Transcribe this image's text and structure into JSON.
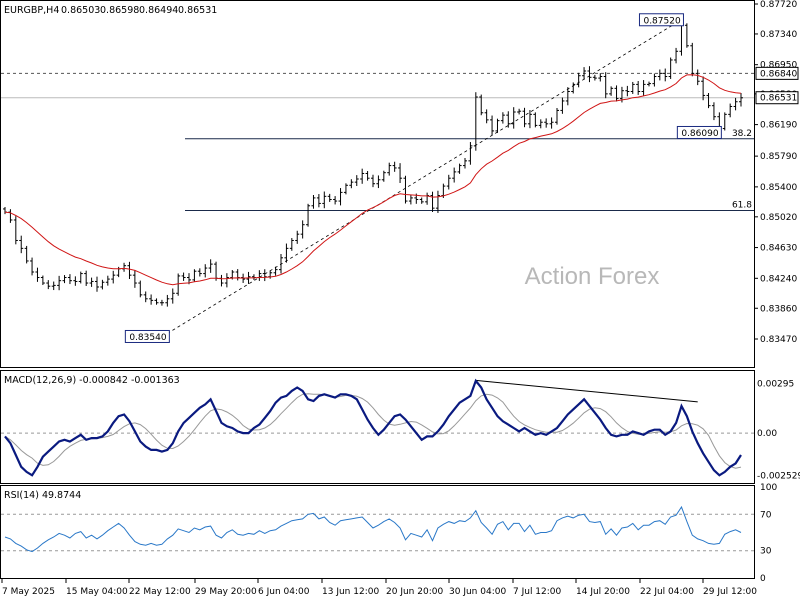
{
  "chart_data": [
    {
      "type": "line",
      "subtype": "candlestick",
      "title": "EURGBP,H4",
      "ohlc": {
        "open": "0.86503",
        "high": "0.86598",
        "low": "0.86494",
        "close": "0.86531"
      },
      "watermark": "Action Forex",
      "x_ticks": [
        "7 May 2025",
        "15 May 04:00",
        "22 May 12:00",
        "29 May 20:00",
        "6 Jun 04:00",
        "13 Jun 12:00",
        "20 Jun 20:00",
        "30 Jun 04:00",
        "7 Jul 12:00",
        "14 Jul 20:00",
        "22 Jul 04:00",
        "29 Jul 12:00"
      ],
      "y_ticks": [
        "0.87720",
        "0.87340",
        "0.86950",
        "0.86580",
        "0.86190",
        "0.85790",
        "0.85400",
        "0.85020",
        "0.84630",
        "0.84240",
        "0.83860",
        "0.83470"
      ],
      "ylim": [
        0.8347,
        0.8772
      ],
      "current_price": "0.86531",
      "resistance_line": "0.86840",
      "fib_labels": [
        {
          "label": "38.2",
          "value": 0.8601
        },
        {
          "label": "61.8",
          "value": 0.851
        }
      ],
      "price_labels": [
        {
          "text": "0.83540",
          "x_index": 30,
          "value": 0.8354
        },
        {
          "text": "0.87520",
          "x_index": 125,
          "value": 0.8752
        },
        {
          "text": "0.86090",
          "x_index": 132,
          "value": 0.8609
        }
      ],
      "series": [
        {
          "name": "Close",
          "values": [
            0.8508,
            0.8498,
            0.8472,
            0.8462,
            0.8446,
            0.8432,
            0.8425,
            0.8418,
            0.8414,
            0.8415,
            0.8421,
            0.8425,
            0.8421,
            0.842,
            0.843,
            0.8418,
            0.842,
            0.8413,
            0.8419,
            0.8423,
            0.8428,
            0.8436,
            0.844,
            0.8428,
            0.8418,
            0.8403,
            0.8398,
            0.8396,
            0.8393,
            0.8393,
            0.8398,
            0.8405,
            0.8427,
            0.8425,
            0.8422,
            0.8433,
            0.843,
            0.8437,
            0.8442,
            0.8424,
            0.8418,
            0.8425,
            0.8432,
            0.8425,
            0.8423,
            0.8426,
            0.8425,
            0.843,
            0.8426,
            0.8431,
            0.8435,
            0.845,
            0.8462,
            0.8472,
            0.848,
            0.8492,
            0.8516,
            0.8526,
            0.8519,
            0.8528,
            0.8524,
            0.8522,
            0.8533,
            0.8542,
            0.8546,
            0.855,
            0.8557,
            0.8551,
            0.8544,
            0.8549,
            0.8558,
            0.8567,
            0.8564,
            0.8551,
            0.8522,
            0.8526,
            0.8524,
            0.8521,
            0.8529,
            0.8513,
            0.8529,
            0.8541,
            0.8551,
            0.8559,
            0.8567,
            0.8573,
            0.8592,
            0.8654,
            0.8634,
            0.8625,
            0.8611,
            0.8624,
            0.8631,
            0.862,
            0.8635,
            0.8636,
            0.862,
            0.8632,
            0.8618,
            0.8622,
            0.862,
            0.8622,
            0.8637,
            0.8649,
            0.8661,
            0.867,
            0.8681,
            0.8687,
            0.8679,
            0.8678,
            0.868,
            0.8658,
            0.8665,
            0.8652,
            0.8662,
            0.8661,
            0.867,
            0.8661,
            0.867,
            0.8671,
            0.868,
            0.8684,
            0.868,
            0.8701,
            0.8712,
            0.8745,
            0.8719,
            0.8684,
            0.8674,
            0.8656,
            0.8643,
            0.8629,
            0.8614,
            0.8632,
            0.8642,
            0.8648,
            0.8653
          ]
        },
        {
          "name": "Moving Average",
          "values": []
        }
      ]
    },
    {
      "type": "line",
      "title": "MACD(12,26,9) -0.000842 -0.001363",
      "y_ticks": [
        "0.00295",
        "0.00",
        "-0.002529"
      ],
      "ylim": [
        -0.0029,
        0.0035
      ],
      "series": [
        {
          "name": "MACD",
          "values": [
            -0.0002,
            -0.0006,
            -0.0013,
            -0.002,
            -0.0023,
            -0.0025,
            -0.002,
            -0.0014,
            -0.0011,
            -0.0008,
            -0.0005,
            -0.0004,
            -0.0005,
            -0.0003,
            -0.0001,
            -0.0004,
            -0.0003,
            -0.0003,
            -0.0002,
            0.0001,
            0.0006,
            0.001,
            0.0011,
            0.0007,
            0.0001,
            -0.0005,
            -0.0008,
            -0.001,
            -0.001,
            -0.0011,
            -0.001,
            -0.0006,
            0.0001,
            0.0006,
            0.0009,
            0.0012,
            0.0015,
            0.0017,
            0.002,
            0.0013,
            0.0006,
            0.0004,
            0.0003,
            0.0001,
            0.0,
            0.0,
            0.0003,
            0.0005,
            0.0009,
            0.0013,
            0.0018,
            0.0021,
            0.0022,
            0.0025,
            0.0027,
            0.0025,
            0.002,
            0.0019,
            0.0022,
            0.0023,
            0.0022,
            0.0021,
            0.0023,
            0.0023,
            0.0022,
            0.002,
            0.0014,
            0.0008,
            0.0003,
            -0.0001,
            0.0002,
            0.0006,
            0.001,
            0.0011,
            0.0008,
            0.0004,
            0.0,
            -0.0004,
            -0.0002,
            -0.0002,
            0.0001,
            0.0005,
            0.001,
            0.0014,
            0.0018,
            0.002,
            0.0022,
            0.0031,
            0.0027,
            0.002,
            0.0015,
            0.001,
            0.0007,
            0.0005,
            0.0003,
            0.0001,
            0.0003,
            0.0001,
            -0.0001,
            0.0,
            -0.0001,
            0.0001,
            0.0003,
            0.0007,
            0.0011,
            0.0014,
            0.0017,
            0.002,
            0.0016,
            0.0012,
            0.0008,
            0.0003,
            -0.0001,
            -0.0002,
            -0.0001,
            -0.0001,
            0.0001,
            0.0,
            -0.0001,
            0.0001,
            0.0002,
            0.0002,
            -0.0001,
            0.0001,
            0.0006,
            0.0016,
            0.001,
            0.0001,
            -0.0006,
            -0.0012,
            -0.0017,
            -0.0022,
            -0.0025,
            -0.0023,
            -0.002,
            -0.0018,
            -0.0013
          ]
        },
        {
          "name": "Signal",
          "values": []
        }
      ]
    },
    {
      "type": "line",
      "title": "RSI(14) 49.8744",
      "y_ticks": [
        "100",
        "70",
        "30",
        "0"
      ],
      "ylim": [
        0,
        100
      ],
      "series": [
        {
          "name": "RSI",
          "values": [
            45,
            43,
            38,
            35,
            31,
            29,
            33,
            38,
            42,
            45,
            49,
            47,
            44,
            49,
            51,
            44,
            47,
            43,
            47,
            52,
            56,
            60,
            55,
            47,
            40,
            37,
            36,
            38,
            36,
            37,
            43,
            47,
            54,
            52,
            50,
            55,
            53,
            56,
            57,
            47,
            44,
            50,
            53,
            48,
            47,
            49,
            48,
            52,
            49,
            52,
            53,
            57,
            60,
            63,
            64,
            65,
            70,
            71,
            65,
            67,
            61,
            58,
            63,
            64,
            65,
            66,
            67,
            61,
            55,
            58,
            62,
            65,
            61,
            55,
            42,
            49,
            47,
            45,
            53,
            41,
            55,
            59,
            62,
            60,
            63,
            62,
            66,
            74,
            61,
            55,
            48,
            59,
            62,
            53,
            60,
            60,
            51,
            58,
            48,
            50,
            50,
            52,
            63,
            66,
            68,
            66,
            69,
            70,
            62,
            61,
            62,
            48,
            54,
            47,
            55,
            56,
            60,
            53,
            58,
            58,
            62,
            63,
            59,
            67,
            69,
            78,
            62,
            47,
            43,
            41,
            38,
            37,
            38,
            48,
            51,
            53,
            50
          ]
        }
      ]
    }
  ]
}
